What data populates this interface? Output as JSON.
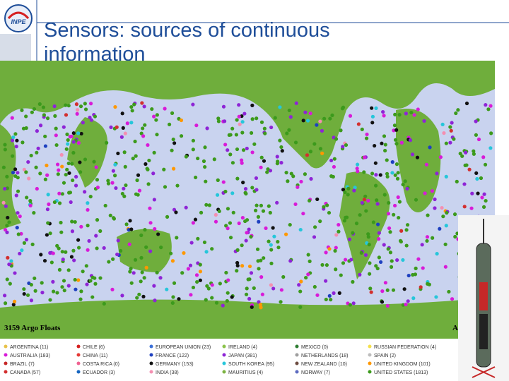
{
  "header": {
    "logo": "INPE",
    "title": "Sensors: sources of continuous information"
  },
  "map": {
    "caption": "3159 Argo Floats",
    "legend": [
      {
        "label": "ARGENTINA (11)",
        "color": "#e8c24a"
      },
      {
        "label": "CHILE (6)",
        "color": "#d62020"
      },
      {
        "label": "EUROPEAN UNION (23)",
        "color": "#3a6fd8"
      },
      {
        "label": "IRELAND (4)",
        "color": "#8bc34a"
      },
      {
        "label": "MEXICO (0)",
        "color": "#2e7d32"
      },
      {
        "label": "RUSSIAN FEDERATION (4)",
        "color": "#f5e04a"
      },
      {
        "label": "AUSTRALIA (183)",
        "color": "#d81bd8"
      },
      {
        "label": "CHINA (11)",
        "color": "#e53935"
      },
      {
        "label": "FRANCE (122)",
        "color": "#1e40c0"
      },
      {
        "label": "JAPAN (381)",
        "color": "#8e24d6"
      },
      {
        "label": "NETHERLANDS (18)",
        "color": "#9e9e9e"
      },
      {
        "label": "SPAIN (2)",
        "color": "#bdbdbd"
      },
      {
        "label": "BRAZIL (7)",
        "color": "#c62828"
      },
      {
        "label": "COSTA RICA (0)",
        "color": "#f06292"
      },
      {
        "label": "GERMANY (153)",
        "color": "#111111"
      },
      {
        "label": "SOUTH KOREA (95)",
        "color": "#26c6da"
      },
      {
        "label": "NEW ZEALAND (10)",
        "color": "#6d4c41"
      },
      {
        "label": "UNITED KINGDOM (101)",
        "color": "#ff9800"
      },
      {
        "label": "CANADA (57)",
        "color": "#d32f2f"
      },
      {
        "label": "ECUADOR (3)",
        "color": "#1565c0"
      },
      {
        "label": "INDIA (38)",
        "color": "#f48fb1"
      },
      {
        "label": "MAURITIUS (4)",
        "color": "#7cb342"
      },
      {
        "label": "NORWAY (7)",
        "color": "#5c6bc0"
      },
      {
        "label": "UNITED STATES (1813)",
        "color": "#3c9a1c"
      }
    ]
  }
}
